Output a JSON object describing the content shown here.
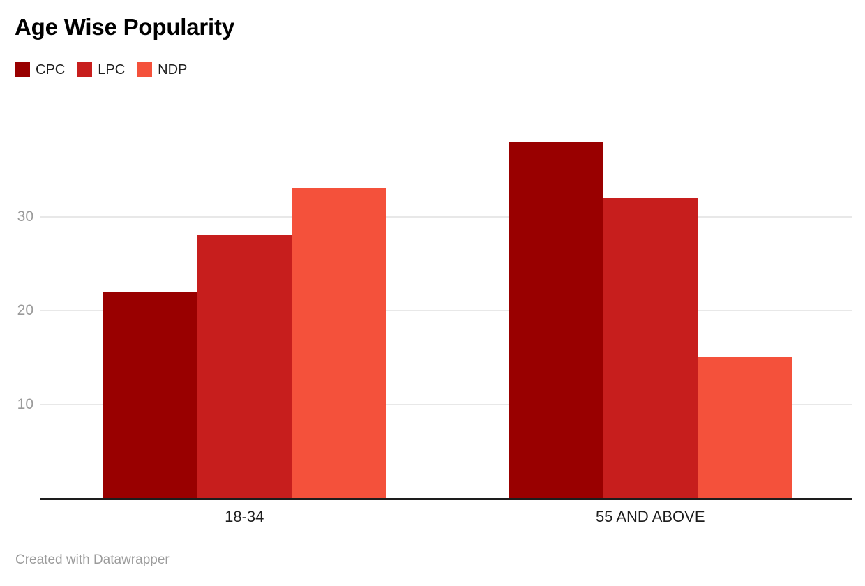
{
  "header": {
    "title": "Age Wise Popularity"
  },
  "footer": {
    "attribution": "Created with Datawrapper"
  },
  "colors": {
    "background": "#ffffff",
    "title_text": "#000000",
    "axis_line": "#1d1d1d",
    "gridline": "#e8e8e8",
    "tick_label_text": "#9a9a9a",
    "category_label_text": "#1d1d1d",
    "footer_text": "#9b9b9b"
  },
  "chart_data": {
    "type": "bar",
    "title": "Age Wise Popularity",
    "categories": [
      "18-34",
      "55 AND ABOVE"
    ],
    "series": [
      {
        "name": "CPC",
        "color": "#990000",
        "values": [
          22,
          38
        ]
      },
      {
        "name": "LPC",
        "color": "#c71e1d",
        "values": [
          28,
          32
        ]
      },
      {
        "name": "NDP",
        "color": "#f4513b",
        "values": [
          33,
          15
        ]
      }
    ],
    "xlabel": "",
    "ylabel": "",
    "y_ticks": [
      10,
      20,
      30
    ],
    "ylim": [
      0,
      40
    ],
    "grid": "horizontal",
    "legend_position": "top-left"
  }
}
